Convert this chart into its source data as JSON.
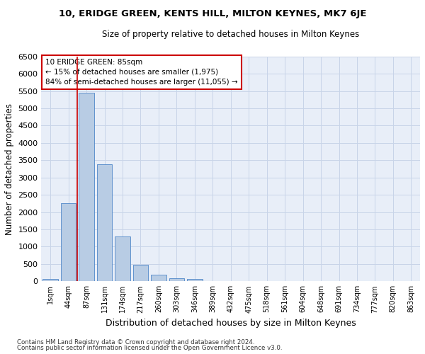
{
  "title1": "10, ERIDGE GREEN, KENTS HILL, MILTON KEYNES, MK7 6JE",
  "title2": "Size of property relative to detached houses in Milton Keynes",
  "xlabel": "Distribution of detached houses by size in Milton Keynes",
  "ylabel": "Number of detached properties",
  "footnote1": "Contains HM Land Registry data © Crown copyright and database right 2024.",
  "footnote2": "Contains public sector information licensed under the Open Government Licence v3.0.",
  "annotation_title": "10 ERIDGE GREEN: 85sqm",
  "annotation_line1": "← 15% of detached houses are smaller (1,975)",
  "annotation_line2": "84% of semi-detached houses are larger (11,055) →",
  "bar_color": "#b8cce4",
  "bar_edge_color": "#4e86c8",
  "grid_color": "#c8d4e8",
  "background_color": "#e8eef8",
  "vline_color": "#cc0000",
  "annotation_box_color": "white",
  "annotation_box_edge": "#cc0000",
  "categories": [
    "1sqm",
    "44sqm",
    "87sqm",
    "131sqm",
    "174sqm",
    "217sqm",
    "260sqm",
    "303sqm",
    "346sqm",
    "389sqm",
    "432sqm",
    "475sqm",
    "518sqm",
    "561sqm",
    "604sqm",
    "648sqm",
    "691sqm",
    "734sqm",
    "777sqm",
    "820sqm",
    "863sqm"
  ],
  "values": [
    75,
    2250,
    5450,
    3380,
    1300,
    480,
    195,
    85,
    60,
    5,
    5,
    5,
    5,
    5,
    5,
    5,
    5,
    5,
    5,
    5,
    5
  ],
  "ylim": [
    0,
    6500
  ],
  "yticks": [
    0,
    500,
    1000,
    1500,
    2000,
    2500,
    3000,
    3500,
    4000,
    4500,
    5000,
    5500,
    6000,
    6500
  ],
  "vline_x_index": 1.5
}
